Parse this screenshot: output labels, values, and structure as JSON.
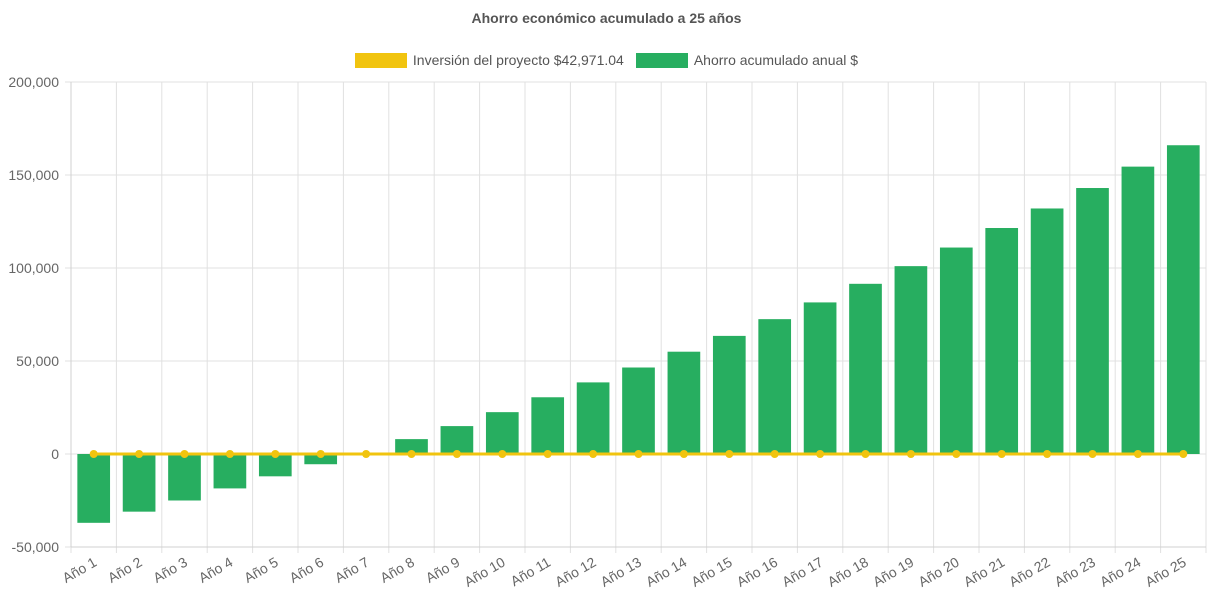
{
  "chart_data": {
    "type": "bar",
    "title": "Ahorro económico acumulado a 25 años",
    "categories": [
      "Año 1",
      "Año 2",
      "Año 3",
      "Año 4",
      "Año 5",
      "Año 6",
      "Año 7",
      "Año 8",
      "Año 9",
      "Año 10",
      "Año 11",
      "Año 12",
      "Año 13",
      "Año 14",
      "Año 15",
      "Año 16",
      "Año 17",
      "Año 18",
      "Año 19",
      "Año 20",
      "Año 21",
      "Año 22",
      "Año 23",
      "Año 24",
      "Año 25"
    ],
    "series": [
      {
        "name": "Inversión del proyecto $42,971.04",
        "kind": "line",
        "color": "#f1c40f",
        "values": [
          0,
          0,
          0,
          0,
          0,
          0,
          0,
          0,
          0,
          0,
          0,
          0,
          0,
          0,
          0,
          0,
          0,
          0,
          0,
          0,
          0,
          0,
          0,
          0,
          0
        ]
      },
      {
        "name": "Ahorro acumulado anual $",
        "kind": "bar",
        "color": "#27ae60",
        "values": [
          -37000,
          -31000,
          -25000,
          -18500,
          -12000,
          -5500,
          800,
          8000,
          15000,
          22500,
          30500,
          38500,
          46500,
          55000,
          63500,
          72500,
          81500,
          91500,
          101000,
          111000,
          121500,
          132000,
          143000,
          154500,
          166000
        ]
      }
    ],
    "ylim": [
      -50000,
      200000
    ],
    "yticks": [
      -50000,
      0,
      50000,
      100000,
      150000,
      200000
    ],
    "ytick_labels": [
      "-50,000",
      "0",
      "50,000",
      "100,000",
      "150,000",
      "200,000"
    ],
    "grid": true,
    "legend_position": "top"
  }
}
